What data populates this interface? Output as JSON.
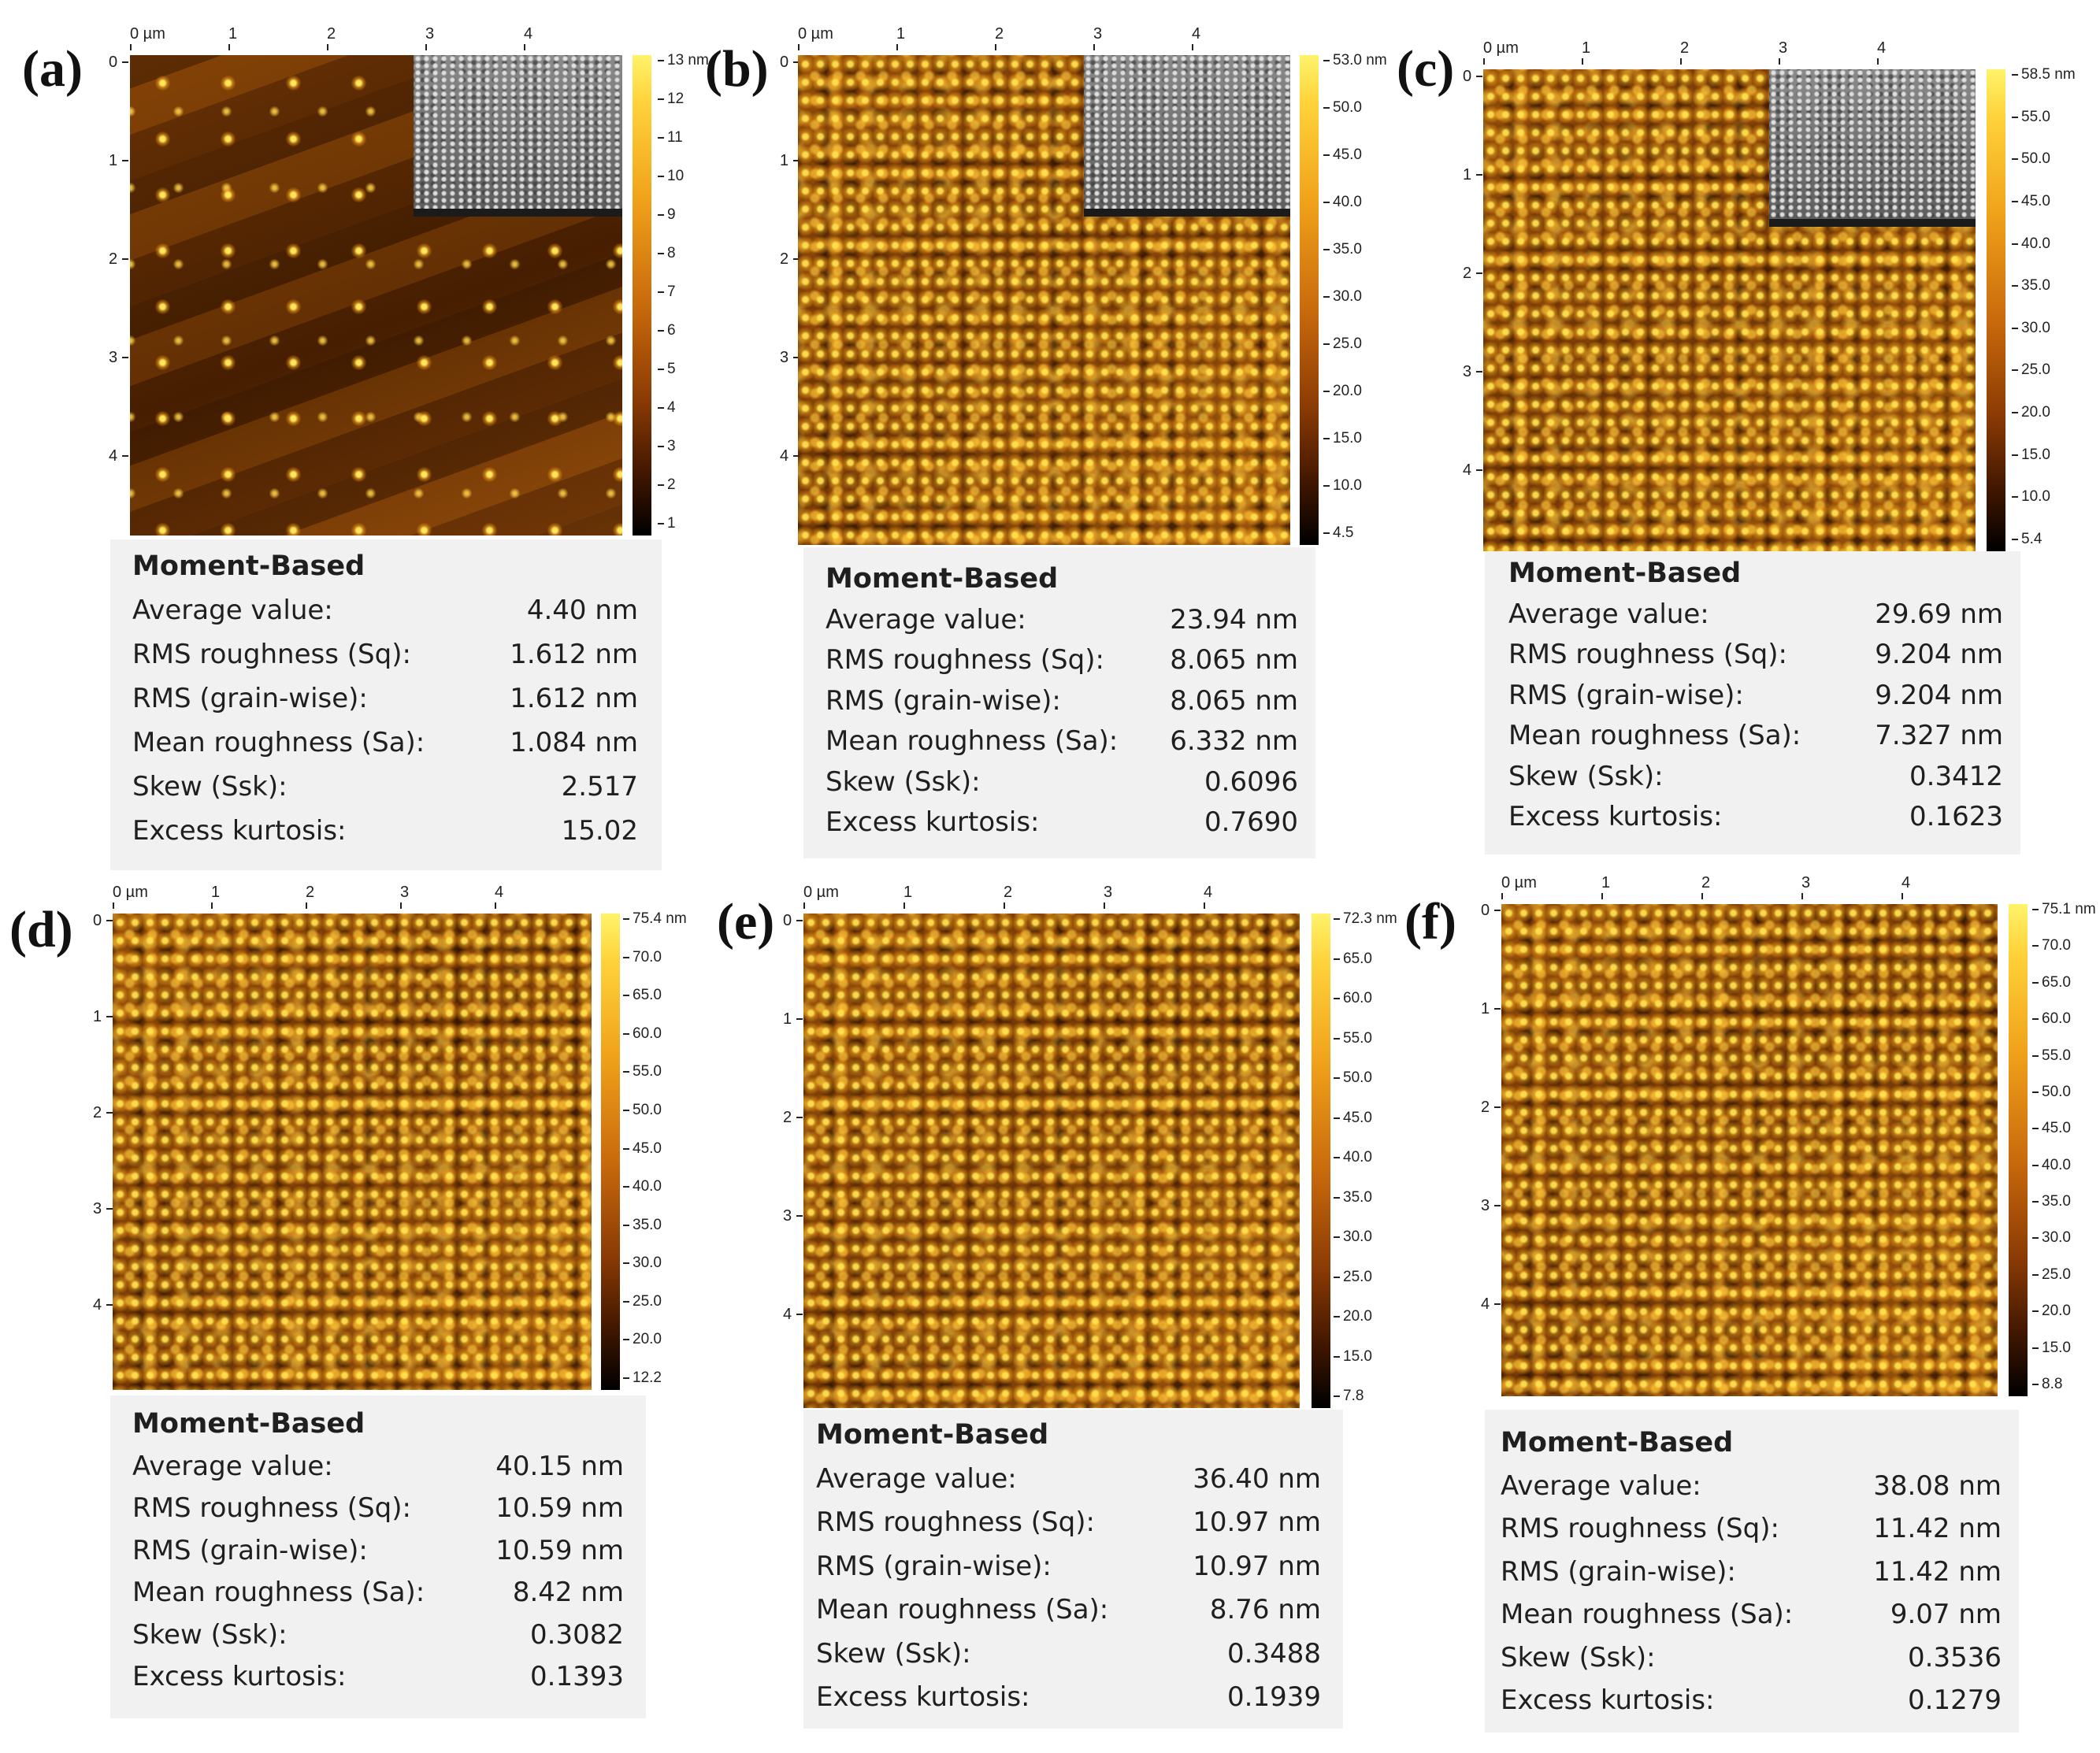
{
  "axis_unit_label": "0 µm",
  "axis_ticks": [
    "1",
    "2",
    "3",
    "4"
  ],
  "stats_title": "Moment-Based",
  "stat_labels": {
    "average": "Average value:",
    "rms_sq": "RMS roughness (Sq):",
    "rms_grain": "RMS (grain-wise):",
    "mean_sa": "Mean roughness (Sa):",
    "skew": "Skew (Ssk):",
    "kurtosis": "Excess kurtosis:"
  },
  "panels": {
    "a": {
      "label": "(a)",
      "colorbar": [
        "13 nm",
        "12",
        "11",
        "10",
        "9",
        "8",
        "7",
        "6",
        "5",
        "4",
        "3",
        "2",
        "1"
      ],
      "stats": {
        "average": "4.40 nm",
        "rms_sq": "1.612 nm",
        "rms_grain": "1.612 nm",
        "mean_sa": "1.084 nm",
        "skew": "2.517",
        "kurtosis": "15.02"
      }
    },
    "b": {
      "label": "(b)",
      "colorbar": [
        "53.0 nm",
        "50.0",
        "45.0",
        "40.0",
        "35.0",
        "30.0",
        "25.0",
        "20.0",
        "15.0",
        "10.0",
        "4.5"
      ],
      "stats": {
        "average": "23.94 nm",
        "rms_sq": "8.065 nm",
        "rms_grain": "8.065 nm",
        "mean_sa": "6.332 nm",
        "skew": "0.6096",
        "kurtosis": "0.7690"
      }
    },
    "c": {
      "label": "(c)",
      "colorbar": [
        "58.5 nm",
        "55.0",
        "50.0",
        "45.0",
        "40.0",
        "35.0",
        "30.0",
        "25.0",
        "20.0",
        "15.0",
        "10.0",
        "5.4"
      ],
      "stats": {
        "average": "29.69 nm",
        "rms_sq": "9.204 nm",
        "rms_grain": "9.204 nm",
        "mean_sa": "7.327 nm",
        "skew": "0.3412",
        "kurtosis": "0.1623"
      }
    },
    "d": {
      "label": "(d)",
      "colorbar": [
        "75.4 nm",
        "70.0",
        "65.0",
        "60.0",
        "55.0",
        "50.0",
        "45.0",
        "40.0",
        "35.0",
        "30.0",
        "25.0",
        "20.0",
        "12.2"
      ],
      "stats": {
        "average": "40.15 nm",
        "rms_sq": "10.59 nm",
        "rms_grain": "10.59 nm",
        "mean_sa": "8.42 nm",
        "skew": "0.3082",
        "kurtosis": "0.1393"
      }
    },
    "e": {
      "label": "(e)",
      "colorbar": [
        "72.3 nm",
        "65.0",
        "60.0",
        "55.0",
        "50.0",
        "45.0",
        "40.0",
        "35.0",
        "30.0",
        "25.0",
        "20.0",
        "15.0",
        "7.8"
      ],
      "stats": {
        "average": "36.40 nm",
        "rms_sq": "10.97 nm",
        "rms_grain": "10.97 nm",
        "mean_sa": "8.76 nm",
        "skew": "0.3488",
        "kurtosis": "0.1939"
      }
    },
    "f": {
      "label": "(f)",
      "colorbar": [
        "75.1 nm",
        "70.0",
        "65.0",
        "60.0",
        "55.0",
        "50.0",
        "45.0",
        "40.0",
        "35.0",
        "30.0",
        "25.0",
        "20.0",
        "15.0",
        "8.8"
      ],
      "stats": {
        "average": "38.08 nm",
        "rms_sq": "11.42 nm",
        "rms_grain": "11.42 nm",
        "mean_sa": "9.07 nm",
        "skew": "0.3536",
        "kurtosis": "0.1279"
      }
    }
  }
}
